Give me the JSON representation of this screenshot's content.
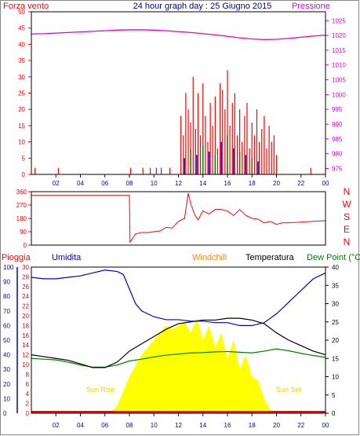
{
  "colors": {
    "wind": "#ff0000",
    "pressure": "#dd00dd",
    "gust": "#dd0000",
    "wind_dir": "#ff0000",
    "rain": "#ff0000",
    "humidity": "#0000cc",
    "windchill": "#ff8800",
    "temperature": "#000000",
    "dewpoint": "#008000",
    "solar": "#ffff00",
    "title": "#000099",
    "axis": "#0000aa"
  },
  "chart_data": [
    {
      "type": "bar",
      "title": "24 hour graph day : 25 Giugno 2015",
      "left_label": "Forza vento",
      "right_label": "Pressione",
      "x_ticks": [
        "02",
        "04",
        "06",
        "08",
        "10",
        "12",
        "14",
        "16",
        "18",
        "20",
        "22",
        "00"
      ],
      "y_ticks_left": [
        0,
        5,
        10,
        15,
        20,
        25,
        30,
        35,
        40,
        45,
        50
      ],
      "y_ticks_right": [
        975,
        980,
        985,
        990,
        995,
        1000,
        1005,
        1010,
        1015,
        1020,
        1025
      ],
      "ylim_left": [
        0,
        50
      ],
      "ylim_right": [
        973,
        1028
      ],
      "xlim": [
        0,
        24
      ],
      "pressure": {
        "x": [
          0,
          1,
          2,
          3,
          4,
          5,
          6,
          7,
          8,
          9,
          10,
          11,
          12,
          13,
          14,
          15,
          16,
          17,
          18,
          19,
          20,
          21,
          22,
          23,
          24
        ],
        "y": [
          1020.5,
          1020.6,
          1020.8,
          1021.0,
          1021.2,
          1021.4,
          1021.6,
          1021.8,
          1021.9,
          1021.9,
          1021.8,
          1021.6,
          1021.3,
          1021.0,
          1020.6,
          1020.2,
          1019.7,
          1019.2,
          1018.8,
          1018.6,
          1018.7,
          1019.0,
          1019.4,
          1019.8,
          1020.1
        ]
      },
      "wind_speed": {
        "x": [
          0.3,
          2.2,
          8.1,
          9.1,
          9.7,
          10.2,
          10.6,
          11.3,
          12.2,
          12.4,
          12.6,
          12.8,
          13.0,
          13.2,
          13.4,
          13.6,
          13.8,
          14.0,
          14.2,
          14.4,
          14.6,
          14.8,
          15.0,
          15.2,
          15.4,
          15.6,
          15.8,
          16.0,
          16.2,
          16.4,
          16.6,
          16.8,
          17.0,
          17.2,
          17.4,
          17.6,
          17.8,
          18.0,
          18.2,
          18.4,
          18.6,
          18.8,
          19.0,
          19.2,
          19.4,
          19.6,
          19.8,
          20.0,
          22.8
        ],
        "y": [
          2,
          2,
          2,
          2,
          2,
          2,
          2,
          2,
          18,
          12,
          25,
          20,
          16,
          30,
          14,
          25,
          12,
          28,
          18,
          10,
          22,
          15,
          24,
          8,
          28,
          26,
          20,
          32,
          15,
          22,
          25,
          12,
          20,
          10,
          18,
          22,
          8,
          16,
          12,
          20,
          10,
          14,
          18,
          8,
          15,
          10,
          12,
          6,
          2
        ]
      },
      "gusts": {
        "x": [
          12.5,
          13.0,
          13.5,
          14.0,
          14.5,
          15.0,
          15.5,
          16.0,
          16.5,
          17.0,
          17.5,
          18.0,
          18.5
        ],
        "y": [
          5,
          8,
          6,
          9,
          7,
          6,
          10,
          12,
          8,
          7,
          6,
          5,
          4
        ]
      }
    },
    {
      "type": "line",
      "y_ticks": [
        0,
        90,
        180,
        270,
        360
      ],
      "ylim": [
        0,
        360
      ],
      "xlim": [
        0,
        24
      ],
      "compass_labels": [
        "N",
        "W",
        "S",
        "E",
        "N"
      ],
      "series": [
        {
          "x": [
            0,
            8.0,
            8.05,
            8.5,
            9.0,
            9.5,
            10.0,
            10.5,
            11.0,
            11.5,
            12.0,
            12.5,
            12.8,
            13.0,
            13.3,
            13.6,
            14.0,
            14.5,
            15.0,
            15.5,
            16.0,
            16.5,
            17.0,
            17.5,
            18.0,
            18.5,
            19.0,
            19.5,
            20.0,
            20.5,
            21.0,
            22.0,
            23.0,
            24.0
          ],
          "y": [
            335,
            335,
            20,
            75,
            85,
            85,
            90,
            95,
            120,
            115,
            160,
            180,
            350,
            280,
            210,
            170,
            230,
            210,
            240,
            240,
            230,
            200,
            240,
            200,
            180,
            175,
            150,
            160,
            140,
            150,
            150,
            155,
            160,
            165
          ]
        }
      ]
    },
    {
      "type": "line",
      "labels": {
        "rain": "Pioggia",
        "humidity": "Umidita",
        "windchill": "Windchill",
        "temperature": "Temperatura",
        "dewpoint": "Dew Point (°C"
      },
      "annotations": [
        "Sun Rise",
        "Sun Set"
      ],
      "x_ticks": [
        "02",
        "04",
        "06",
        "08",
        "10",
        "12",
        "14",
        "16",
        "18",
        "20",
        "22",
        "00"
      ],
      "y_ticks_humidity": [
        0,
        10,
        20,
        30,
        40,
        50,
        60,
        70,
        80,
        90,
        100
      ],
      "y_ticks_rain": [
        0,
        2,
        4,
        6,
        8,
        10,
        12,
        14,
        16,
        18,
        20,
        22,
        24,
        26,
        28,
        30
      ],
      "y_ticks_temp": [
        0,
        5,
        10,
        15,
        20,
        25,
        30,
        35,
        40
      ],
      "ylim_temp": [
        0,
        40
      ],
      "xlim": [
        0,
        24
      ],
      "humidity": {
        "x": [
          0,
          1,
          2,
          3,
          4,
          5,
          6,
          7,
          7.5,
          8,
          8.5,
          9,
          9.5,
          10,
          11,
          12,
          13,
          14,
          15,
          16,
          17,
          18,
          19,
          20,
          21,
          22,
          23,
          24
        ],
        "y": [
          93,
          92,
          92,
          93,
          94,
          96,
          98,
          97,
          95,
          85,
          75,
          70,
          68,
          66,
          64,
          64,
          63,
          63,
          62,
          62,
          60,
          60,
          62,
          68,
          76,
          84,
          92,
          96
        ]
      },
      "temperature": {
        "x": [
          0,
          1,
          2,
          3,
          4,
          5,
          6,
          7,
          8,
          9,
          10,
          11,
          12,
          13,
          14,
          15,
          16,
          17,
          18,
          19,
          20,
          21,
          22,
          23,
          24
        ],
        "y": [
          16,
          15.5,
          15,
          14.5,
          13.5,
          12.5,
          12.5,
          14,
          17,
          19,
          21,
          23,
          24.5,
          25,
          25.5,
          25.5,
          26,
          26,
          25.5,
          24.5,
          22,
          20,
          18.5,
          17,
          16
        ]
      },
      "dewpoint": {
        "x": [
          0,
          1,
          2,
          3,
          4,
          5,
          6,
          7,
          8,
          9,
          10,
          11,
          12,
          13,
          14,
          15,
          16,
          17,
          18,
          19,
          20,
          21,
          22,
          23,
          24
        ],
        "y": [
          15,
          14.8,
          14.6,
          14,
          13.2,
          12.6,
          12.6,
          13.2,
          14.3,
          14.8,
          15.4,
          15.9,
          16.2,
          16.5,
          16.6,
          16.8,
          16.9,
          16.7,
          16.5,
          17,
          17.6,
          17.1,
          16.4,
          15.8,
          15.3
        ]
      },
      "solar": {
        "x": [
          5.9,
          6.5,
          7.0,
          7.5,
          8.0,
          8.5,
          9.0,
          9.5,
          10.0,
          10.5,
          11.0,
          11.5,
          12.0,
          12.5,
          13.0,
          13.5,
          14.0,
          14.5,
          15.0,
          15.5,
          16.0,
          16.5,
          17.0,
          17.5,
          18.0,
          18.5,
          19.0,
          19.5,
          20.1
        ],
        "y": [
          0,
          0.5,
          2,
          6,
          10,
          13,
          16,
          18,
          20,
          22,
          24,
          23,
          24,
          25,
          22,
          26,
          20,
          24,
          18,
          22,
          15,
          20,
          12,
          16,
          10,
          9,
          4,
          1,
          0
        ]
      }
    }
  ]
}
